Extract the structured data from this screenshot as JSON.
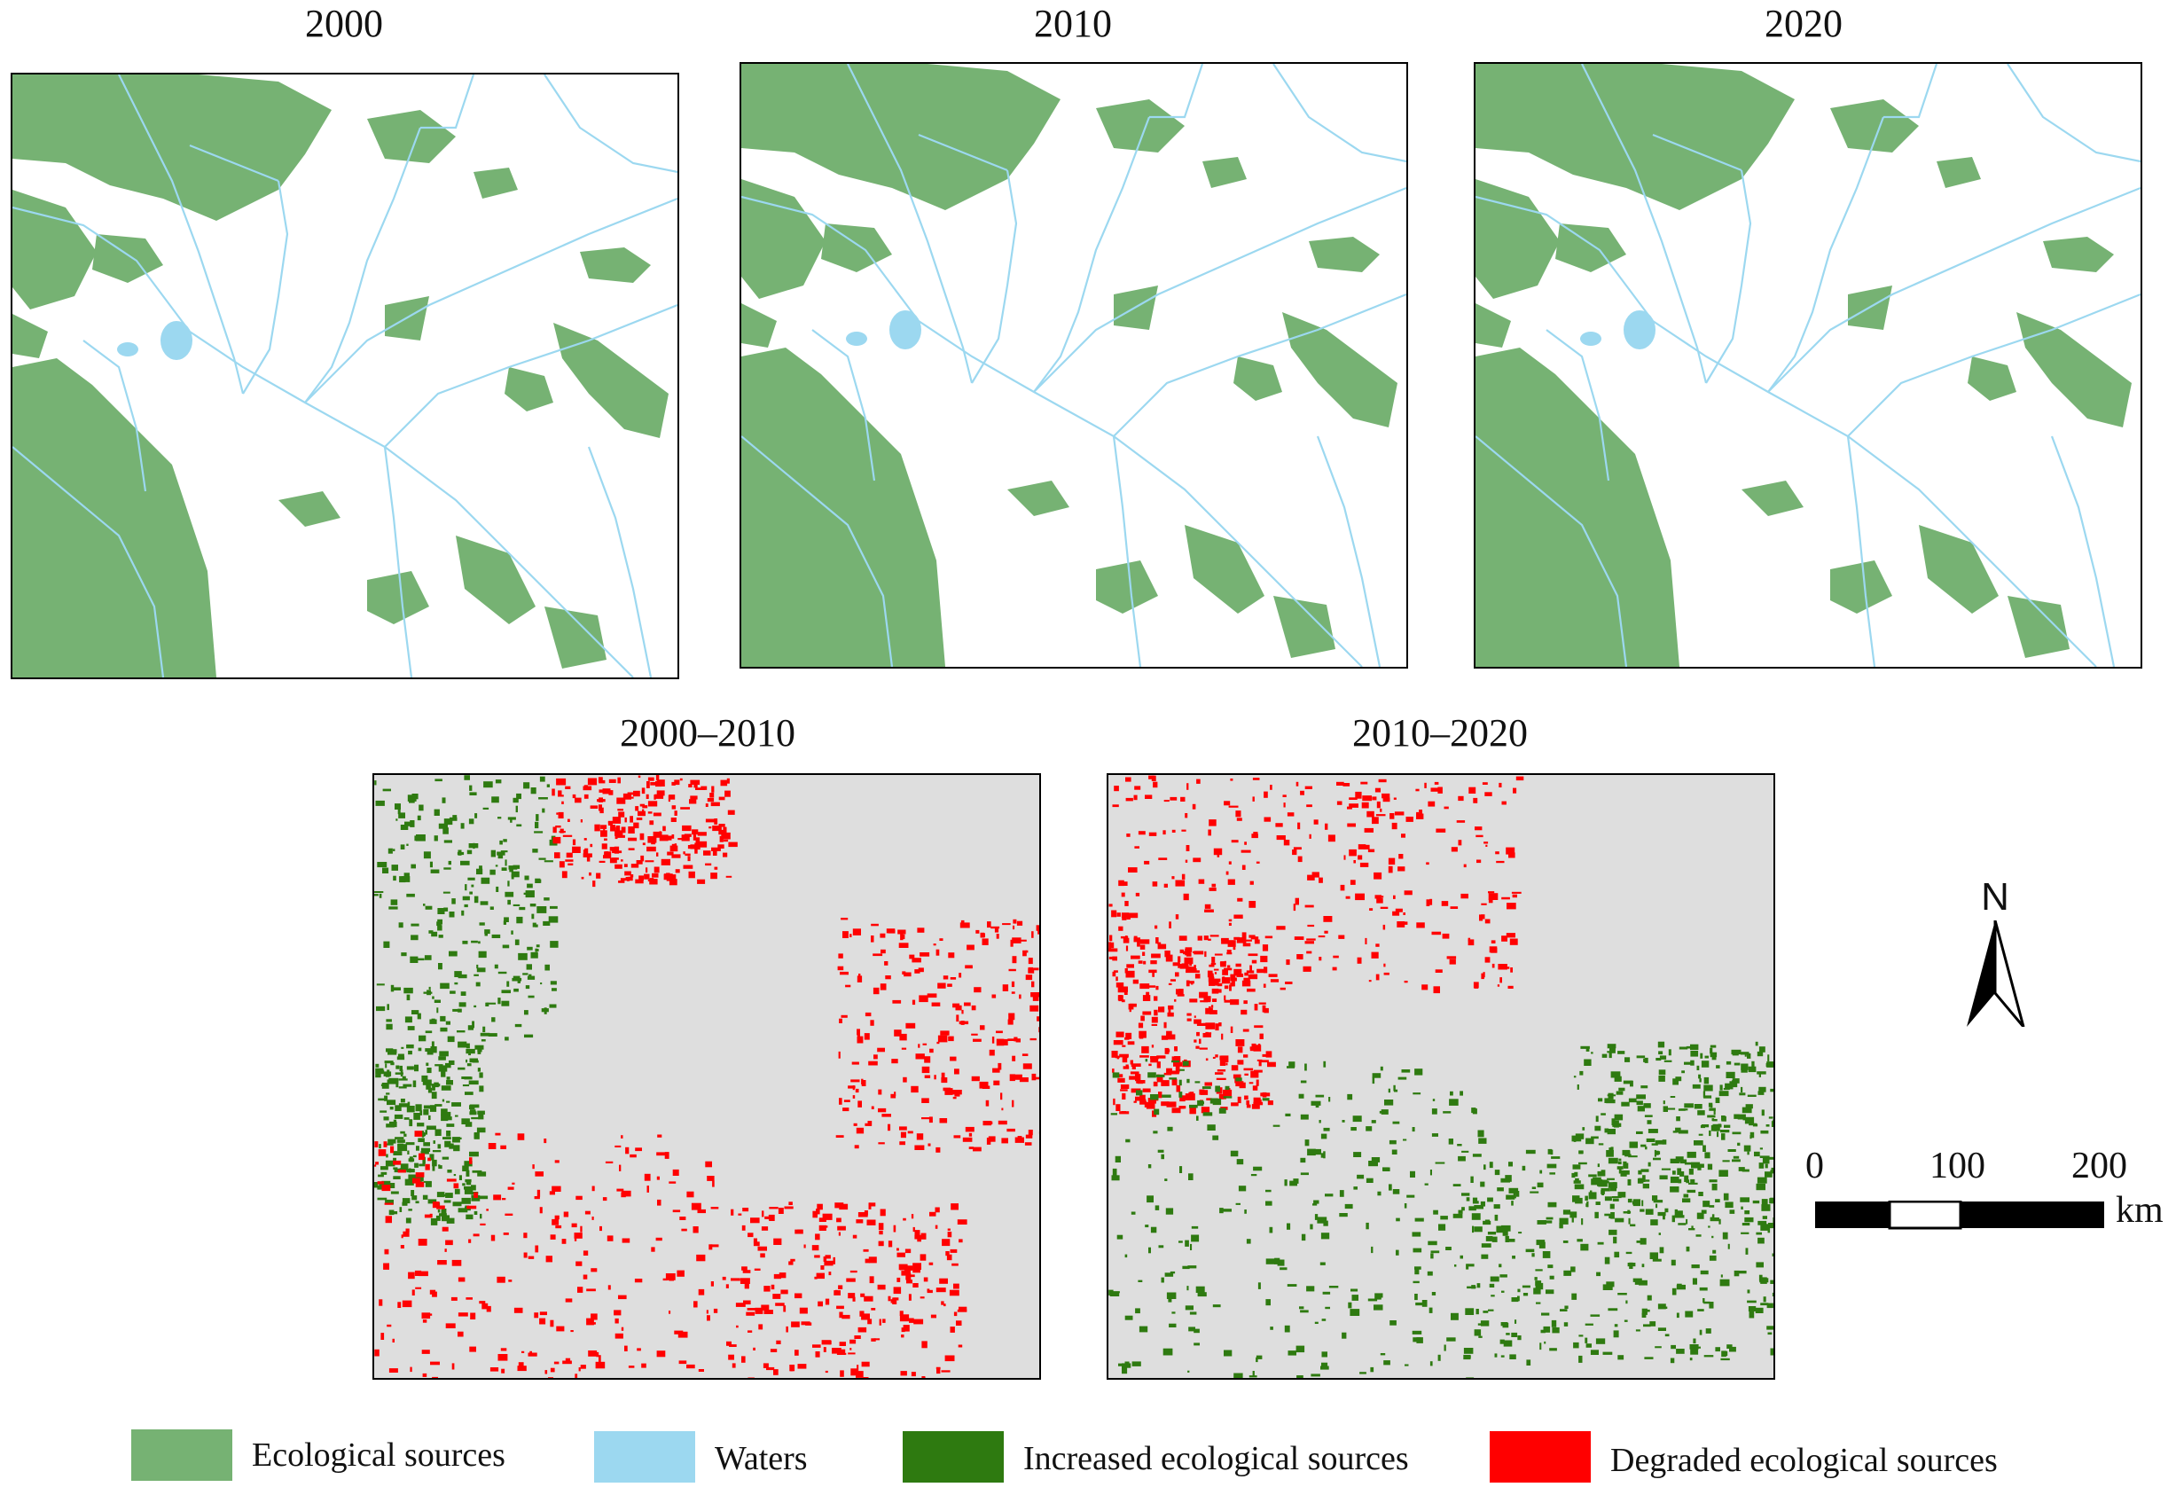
{
  "maps": {
    "y2000": {
      "title": "2000"
    },
    "y2010": {
      "title": "2010"
    },
    "y2020": {
      "title": "2020"
    },
    "c0010": {
      "title": "2000–2010"
    },
    "c1020": {
      "title": "2010–2020"
    }
  },
  "north_arrow": {
    "label": "N",
    "icon": "north-arrow-icon"
  },
  "scale_bar": {
    "ticks": [
      "0",
      "100",
      "200"
    ],
    "unit": "km"
  },
  "legend": [
    {
      "label": "Ecological sources",
      "color": "#76b273"
    },
    {
      "label": "Waters",
      "color": "#9cd8f0"
    },
    {
      "label": "Increased ecological sources",
      "color": "#2e7a10"
    },
    {
      "label": "Degraded ecological sources",
      "color": "#ff0000"
    }
  ],
  "colors": {
    "ecological": "#76b273",
    "water": "#9cd8f0",
    "increased": "#2e7a10",
    "degraded": "#ff0000",
    "change_bg": "#dedede"
  }
}
